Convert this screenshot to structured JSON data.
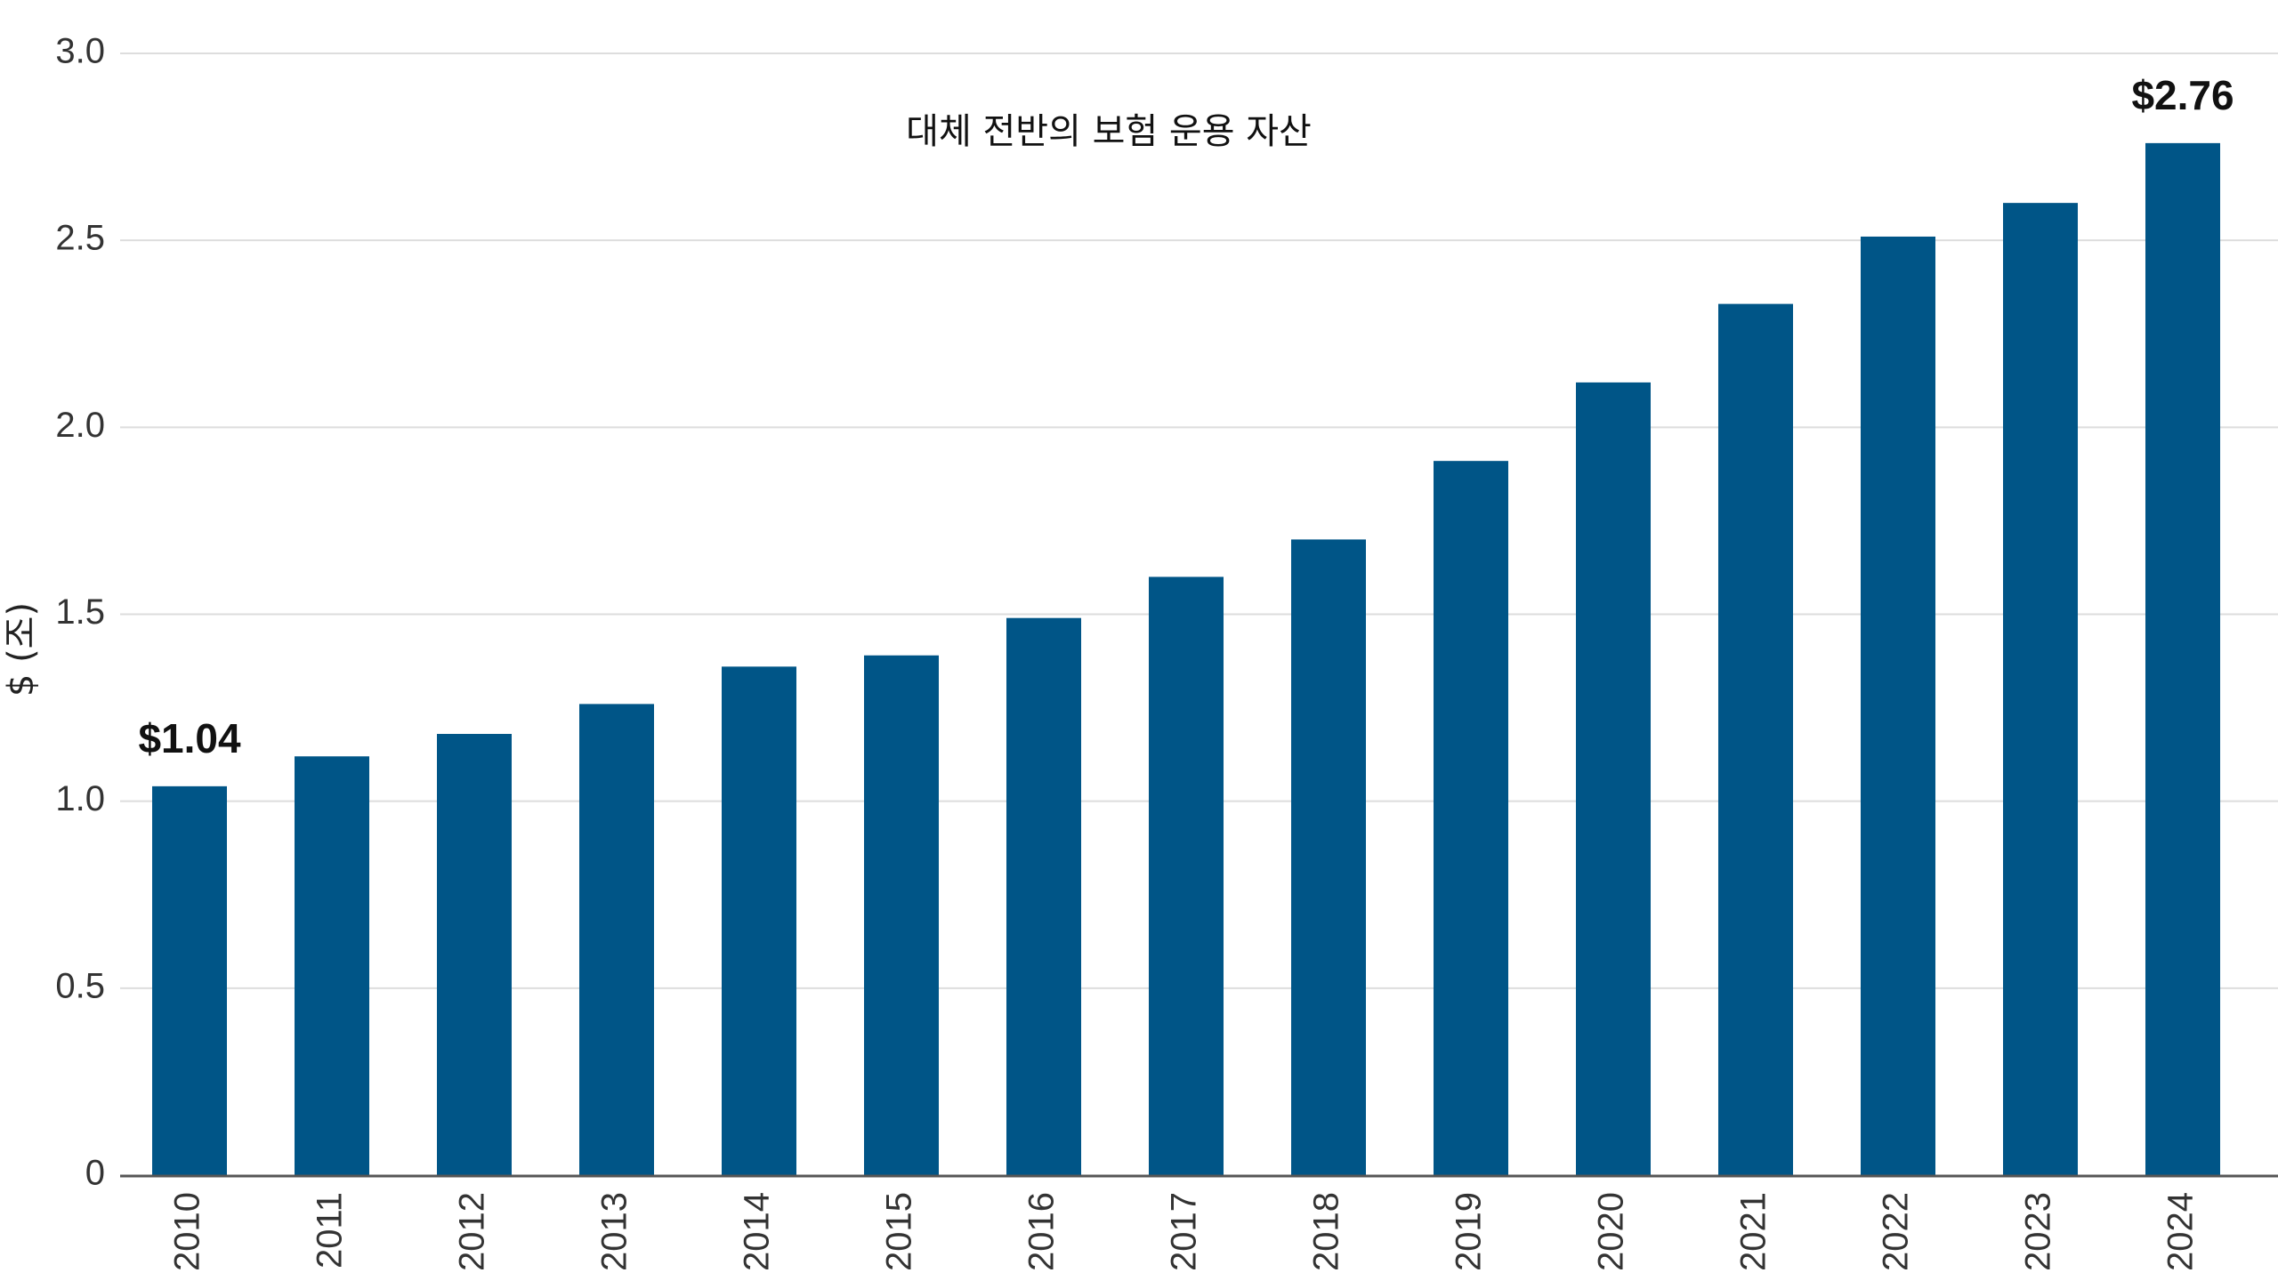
{
  "chart_data": {
    "type": "bar",
    "title": "대체 전반의 보험 운용 자산",
    "xlabel": "",
    "ylabel": "$ (조)",
    "ylim": [
      0,
      3.0
    ],
    "yticks": [
      0,
      0.5,
      1.0,
      1.5,
      2.0,
      2.5,
      3.0
    ],
    "ytick_labels": [
      "0",
      "0.5",
      "1.0",
      "1.5",
      "2.0",
      "2.5",
      "3.0"
    ],
    "grid": true,
    "categories": [
      "2010",
      "2011",
      "2012",
      "2013",
      "2014",
      "2015",
      "2016",
      "2017",
      "2018",
      "2019",
      "2020",
      "2021",
      "2022",
      "2023",
      "2024"
    ],
    "series": [
      {
        "values": [
          1.04,
          1.12,
          1.18,
          1.26,
          1.36,
          1.39,
          1.49,
          1.6,
          1.7,
          1.91,
          2.12,
          2.33,
          2.51,
          2.6,
          2.76
        ],
        "color": "#005587"
      }
    ],
    "annotations": [
      {
        "index": 0,
        "text": "$1.04"
      },
      {
        "index": 14,
        "text": "$2.76"
      }
    ],
    "colors": {
      "bar": "#005587",
      "grid": "#dddddd",
      "axis": "#555555"
    }
  }
}
